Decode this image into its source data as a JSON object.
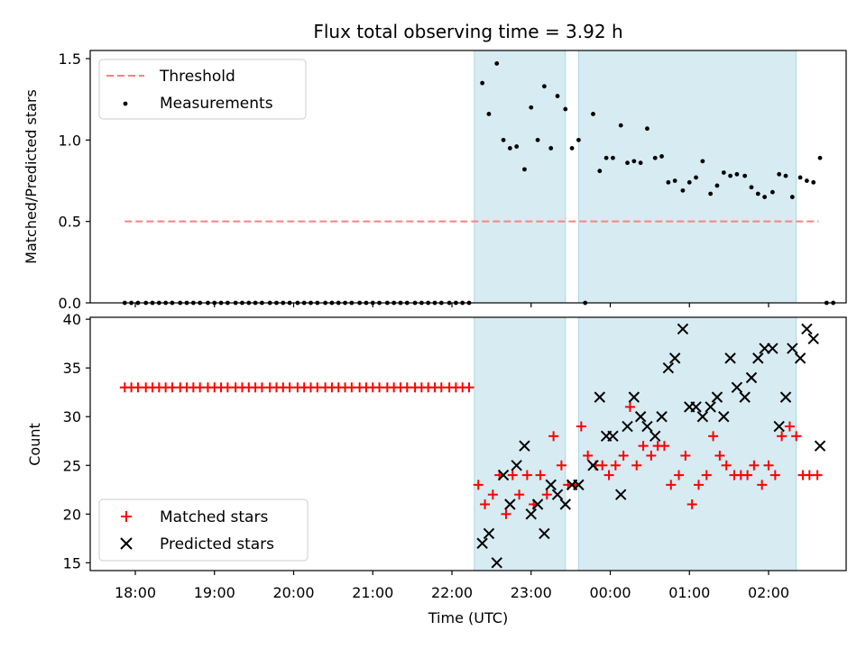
{
  "chart_data": [
    {
      "type": "scatter",
      "title": "Flux total observing time = 3.92 h",
      "xlabel": "",
      "ylabel": "Matched/Predicted stars",
      "xlim": [
        "17:33",
        "23:59+02:59"
      ],
      "ylim": [
        0,
        1.55
      ],
      "yticks": [
        "0.0",
        "0.5",
        "1.0",
        "1.5"
      ],
      "threshold": 0.5,
      "threshold_range": [
        "17:52",
        "26:38"
      ],
      "shaded_intervals": [
        [
          "22:17",
          "23:26"
        ],
        [
          "23:36",
          "26:21"
        ]
      ],
      "legend": {
        "placement": "top-left",
        "entries": [
          {
            "name": "Threshold",
            "color": "#ff7f7f",
            "style": "dashed-line"
          },
          {
            "name": "Measurements",
            "color": "#000000",
            "style": "dot"
          }
        ]
      },
      "series": [
        {
          "name": "Measurements",
          "points": [
            [
              "17:52",
              0
            ],
            [
              "17:57",
              0
            ],
            [
              "18:02",
              0
            ],
            [
              "18:08",
              0
            ],
            [
              "18:13",
              0
            ],
            [
              "18:18",
              0
            ],
            [
              "18:23",
              0
            ],
            [
              "18:28",
              0
            ],
            [
              "18:34",
              0
            ],
            [
              "18:39",
              0
            ],
            [
              "18:44",
              0
            ],
            [
              "18:49",
              0
            ],
            [
              "18:55",
              0
            ],
            [
              "19:00",
              0
            ],
            [
              "19:05",
              0
            ],
            [
              "19:10",
              0
            ],
            [
              "19:16",
              0
            ],
            [
              "19:21",
              0
            ],
            [
              "19:26",
              0
            ],
            [
              "19:31",
              0
            ],
            [
              "19:36",
              0
            ],
            [
              "19:42",
              0
            ],
            [
              "19:47",
              0
            ],
            [
              "19:52",
              0
            ],
            [
              "19:57",
              0
            ],
            [
              "20:03",
              0
            ],
            [
              "20:08",
              0
            ],
            [
              "20:13",
              0
            ],
            [
              "20:18",
              0
            ],
            [
              "20:24",
              0
            ],
            [
              "20:29",
              0
            ],
            [
              "20:34",
              0
            ],
            [
              "20:39",
              0
            ],
            [
              "20:44",
              0
            ],
            [
              "20:50",
              0
            ],
            [
              "20:55",
              0
            ],
            [
              "21:00",
              0
            ],
            [
              "21:05",
              0
            ],
            [
              "21:11",
              0
            ],
            [
              "21:16",
              0
            ],
            [
              "21:21",
              0
            ],
            [
              "21:26",
              0
            ],
            [
              "21:32",
              0
            ],
            [
              "21:37",
              0
            ],
            [
              "21:42",
              0
            ],
            [
              "21:47",
              0
            ],
            [
              "21:52",
              0
            ],
            [
              "21:58",
              0
            ],
            [
              "22:03",
              0
            ],
            [
              "22:08",
              0
            ],
            [
              "22:13",
              0
            ],
            [
              "22:23",
              1.35
            ],
            [
              "22:28",
              1.16
            ],
            [
              "22:34",
              1.47
            ],
            [
              "22:39",
              1.0
            ],
            [
              "22:44",
              0.95
            ],
            [
              "22:49",
              0.96
            ],
            [
              "22:55",
              0.82
            ],
            [
              "23:00",
              1.2
            ],
            [
              "23:05",
              1.0
            ],
            [
              "23:10",
              1.33
            ],
            [
              "23:15",
              0.95
            ],
            [
              "23:20",
              1.27
            ],
            [
              "23:26",
              1.19
            ],
            [
              "23:31",
              0.95
            ],
            [
              "23:36",
              1.0
            ],
            [
              "23:41",
              0
            ],
            [
              "23:47",
              1.16
            ],
            [
              "23:52",
              0.81
            ],
            [
              "23:57",
              0.89
            ],
            [
              "24:02",
              0.89
            ],
            [
              "24:08",
              1.09
            ],
            [
              "24:13",
              0.86
            ],
            [
              "24:18",
              0.87
            ],
            [
              "24:23",
              0.86
            ],
            [
              "24:28",
              1.07
            ],
            [
              "24:34",
              0.89
            ],
            [
              "24:39",
              0.9
            ],
            [
              "24:44",
              0.74
            ],
            [
              "24:49",
              0.75
            ],
            [
              "24:55",
              0.69
            ],
            [
              "25:00",
              0.74
            ],
            [
              "25:05",
              0.77
            ],
            [
              "25:10",
              0.87
            ],
            [
              "25:16",
              0.67
            ],
            [
              "25:21",
              0.72
            ],
            [
              "25:26",
              0.8
            ],
            [
              "25:31",
              0.78
            ],
            [
              "25:36",
              0.79
            ],
            [
              "25:42",
              0.78
            ],
            [
              "25:47",
              0.71
            ],
            [
              "25:52",
              0.67
            ],
            [
              "25:57",
              0.65
            ],
            [
              "26:03",
              0.68
            ],
            [
              "26:08",
              0.79
            ],
            [
              "26:13",
              0.78
            ],
            [
              "26:18",
              0.65
            ],
            [
              "26:24",
              0.77
            ],
            [
              "26:29",
              0.75
            ],
            [
              "26:34",
              0.74
            ],
            [
              "26:39",
              0.89
            ],
            [
              "26:44",
              0
            ],
            [
              "26:49",
              0
            ]
          ]
        }
      ]
    },
    {
      "type": "scatter",
      "xlabel": "Time (UTC)",
      "ylabel": "Count",
      "ylim": [
        14.2,
        40.2
      ],
      "yticks": [
        "15",
        "20",
        "25",
        "30",
        "35",
        "40"
      ],
      "xticks": [
        "18:00",
        "19:00",
        "20:00",
        "21:00",
        "22:00",
        "23:00",
        "00:00",
        "01:00",
        "02:00"
      ],
      "shaded_intervals": [
        [
          "22:17",
          "23:26"
        ],
        [
          "23:36",
          "26:21"
        ]
      ],
      "legend": {
        "placement": "bottom-left",
        "entries": [
          {
            "name": "Matched stars",
            "color": "#ff0000",
            "marker": "plus"
          },
          {
            "name": "Predicted stars",
            "color": "#000000",
            "marker": "x"
          }
        ]
      },
      "series": [
        {
          "name": "Matched stars",
          "color": "#ff0000",
          "points": [
            [
              "17:52",
              33
            ],
            [
              "17:57",
              33
            ],
            [
              "18:02",
              33
            ],
            [
              "18:08",
              33
            ],
            [
              "18:13",
              33
            ],
            [
              "18:18",
              33
            ],
            [
              "18:23",
              33
            ],
            [
              "18:28",
              33
            ],
            [
              "18:34",
              33
            ],
            [
              "18:39",
              33
            ],
            [
              "18:44",
              33
            ],
            [
              "18:49",
              33
            ],
            [
              "18:55",
              33
            ],
            [
              "19:00",
              33
            ],
            [
              "19:05",
              33
            ],
            [
              "19:10",
              33
            ],
            [
              "19:16",
              33
            ],
            [
              "19:21",
              33
            ],
            [
              "19:26",
              33
            ],
            [
              "19:31",
              33
            ],
            [
              "19:36",
              33
            ],
            [
              "19:42",
              33
            ],
            [
              "19:47",
              33
            ],
            [
              "19:52",
              33
            ],
            [
              "19:57",
              33
            ],
            [
              "20:03",
              33
            ],
            [
              "20:08",
              33
            ],
            [
              "20:13",
              33
            ],
            [
              "20:18",
              33
            ],
            [
              "20:24",
              33
            ],
            [
              "20:29",
              33
            ],
            [
              "20:34",
              33
            ],
            [
              "20:39",
              33
            ],
            [
              "20:44",
              33
            ],
            [
              "20:50",
              33
            ],
            [
              "20:55",
              33
            ],
            [
              "21:00",
              33
            ],
            [
              "21:05",
              33
            ],
            [
              "21:11",
              33
            ],
            [
              "21:16",
              33
            ],
            [
              "21:21",
              33
            ],
            [
              "21:26",
              33
            ],
            [
              "21:32",
              33
            ],
            [
              "21:37",
              33
            ],
            [
              "21:42",
              33
            ],
            [
              "21:47",
              33
            ],
            [
              "21:52",
              33
            ],
            [
              "21:58",
              33
            ],
            [
              "22:03",
              33
            ],
            [
              "22:08",
              33
            ],
            [
              "22:13",
              33
            ],
            [
              "22:20",
              23
            ],
            [
              "22:25",
              21
            ],
            [
              "22:31",
              22
            ],
            [
              "22:36",
              24
            ],
            [
              "22:41",
              20
            ],
            [
              "22:46",
              24
            ],
            [
              "22:51",
              22
            ],
            [
              "22:57",
              24
            ],
            [
              "23:02",
              21
            ],
            [
              "23:07",
              24
            ],
            [
              "23:12",
              22
            ],
            [
              "23:17",
              28
            ],
            [
              "23:23",
              25
            ],
            [
              "23:28",
              23
            ],
            [
              "23:33",
              23
            ],
            [
              "23:38",
              29
            ],
            [
              "23:43",
              26
            ],
            [
              "23:49",
              25
            ],
            [
              "23:54",
              25
            ],
            [
              "23:59",
              24
            ],
            [
              "24:04",
              25
            ],
            [
              "24:10",
              26
            ],
            [
              "24:15",
              31
            ],
            [
              "24:20",
              25
            ],
            [
              "24:25",
              27
            ],
            [
              "24:31",
              26
            ],
            [
              "24:36",
              27
            ],
            [
              "24:41",
              27
            ],
            [
              "24:46",
              23
            ],
            [
              "24:52",
              24
            ],
            [
              "24:57",
              26
            ],
            [
              "25:02",
              21
            ],
            [
              "25:07",
              23
            ],
            [
              "25:13",
              24
            ],
            [
              "25:18",
              28
            ],
            [
              "25:23",
              26
            ],
            [
              "25:28",
              25
            ],
            [
              "25:34",
              24
            ],
            [
              "25:39",
              24
            ],
            [
              "25:44",
              24
            ],
            [
              "25:49",
              25
            ],
            [
              "25:55",
              23
            ],
            [
              "26:00",
              25
            ],
            [
              "26:05",
              24
            ],
            [
              "26:10",
              28
            ],
            [
              "26:16",
              29
            ],
            [
              "26:21",
              28
            ],
            [
              "26:26",
              24
            ],
            [
              "26:31",
              24
            ],
            [
              "26:37",
              24
            ]
          ]
        },
        {
          "name": "Predicted stars",
          "color": "#000000",
          "points": [
            [
              "22:23",
              17
            ],
            [
              "22:28",
              18
            ],
            [
              "22:34",
              15
            ],
            [
              "22:39",
              24
            ],
            [
              "22:44",
              21
            ],
            [
              "22:49",
              25
            ],
            [
              "22:55",
              27
            ],
            [
              "23:00",
              20
            ],
            [
              "23:05",
              21
            ],
            [
              "23:10",
              18
            ],
            [
              "23:15",
              23
            ],
            [
              "23:20",
              22
            ],
            [
              "23:26",
              21
            ],
            [
              "23:31",
              23
            ],
            [
              "23:36",
              23
            ],
            [
              "23:47",
              25
            ],
            [
              "23:52",
              32
            ],
            [
              "23:57",
              28
            ],
            [
              "24:02",
              28
            ],
            [
              "24:08",
              22
            ],
            [
              "24:13",
              29
            ],
            [
              "24:18",
              32
            ],
            [
              "24:23",
              30
            ],
            [
              "24:28",
              29
            ],
            [
              "24:34",
              28
            ],
            [
              "24:39",
              30
            ],
            [
              "24:44",
              35
            ],
            [
              "24:49",
              36
            ],
            [
              "24:55",
              39
            ],
            [
              "25:00",
              31
            ],
            [
              "25:05",
              31
            ],
            [
              "25:10",
              30
            ],
            [
              "25:16",
              31
            ],
            [
              "25:21",
              32
            ],
            [
              "25:26",
              30
            ],
            [
              "25:31",
              36
            ],
            [
              "25:36",
              33
            ],
            [
              "25:42",
              32
            ],
            [
              "25:47",
              34
            ],
            [
              "25:52",
              36
            ],
            [
              "25:57",
              37
            ],
            [
              "26:03",
              37
            ],
            [
              "26:08",
              29
            ],
            [
              "26:13",
              32
            ],
            [
              "26:18",
              37
            ],
            [
              "26:24",
              36
            ],
            [
              "26:29",
              39
            ],
            [
              "26:34",
              38
            ],
            [
              "26:39",
              27
            ]
          ]
        }
      ]
    }
  ]
}
